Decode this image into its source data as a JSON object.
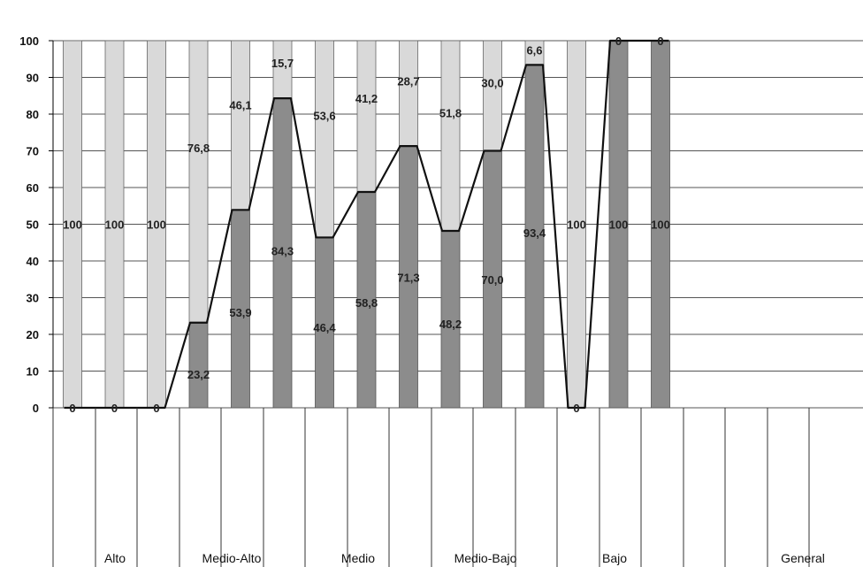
{
  "chart_data": {
    "type": "bar",
    "stacked": true,
    "ylim": [
      0,
      100
    ],
    "yticks": [
      0,
      10,
      20,
      30,
      40,
      50,
      60,
      70,
      80,
      90,
      100
    ],
    "grid": true,
    "groups": [
      "Alto",
      "Medio-Alto",
      "Medio",
      "Medio-Bajo",
      "Bajo",
      "",
      "General"
    ],
    "series": [
      {
        "color": "#8c8c8c",
        "values": [
          0,
          0,
          0,
          23.2,
          53.9,
          84.3,
          46.4,
          58.8,
          71.3,
          48.2,
          70.0,
          93.4,
          0,
          100,
          100
        ],
        "labels": [
          "0",
          "0",
          "0",
          "23,2",
          "53,9",
          "84,3",
          "46,4",
          "58,8",
          "71,3",
          "48,2",
          "70,0",
          "93,4",
          "0",
          "100",
          "100"
        ]
      },
      {
        "color": "#d9d9d9",
        "values": [
          100,
          100,
          100,
          76.8,
          46.1,
          15.7,
          53.6,
          41.2,
          28.7,
          51.8,
          30.0,
          6.6,
          100,
          0,
          0
        ],
        "labels": [
          "100",
          "100",
          "100",
          "76,8",
          "46,1",
          "15,7",
          "53,6",
          "41,2",
          "28,7",
          "51,8",
          "30,0",
          "6,6",
          "100",
          "0",
          "0"
        ]
      }
    ],
    "line_values": [
      0,
      0,
      0,
      23.2,
      53.9,
      84.3,
      46.4,
      58.8,
      71.3,
      48.2,
      70.0,
      93.4,
      0,
      100,
      100
    ]
  }
}
